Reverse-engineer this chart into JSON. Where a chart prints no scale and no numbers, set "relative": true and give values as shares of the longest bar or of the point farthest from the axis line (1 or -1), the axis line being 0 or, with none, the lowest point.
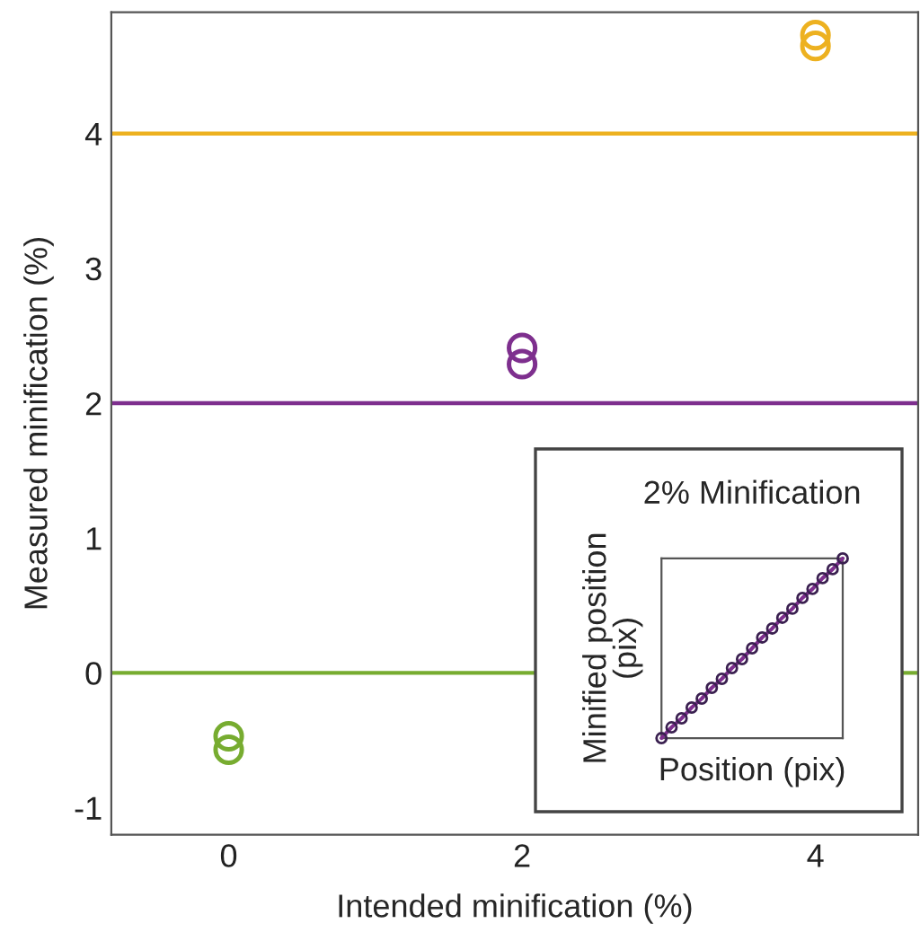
{
  "chart_data": [
    {
      "type": "scatter",
      "xlabel": "Intended minification (%)",
      "ylabel": "Measured minification (%)",
      "xlim": [
        -0.8,
        4.7
      ],
      "ylim": [
        -1.2,
        4.9
      ],
      "xticks": [
        0,
        2,
        4
      ],
      "yticks": [
        -1,
        0,
        1,
        2,
        3,
        4
      ],
      "marker": "circle",
      "grid": false,
      "series": [
        {
          "color": "#77ac30",
          "x": [
            0,
            0
          ],
          "values": [
            -0.47,
            -0.57
          ]
        },
        {
          "color": "#7e2f8e",
          "x": [
            2,
            2
          ],
          "values": [
            2.41,
            2.29
          ]
        },
        {
          "color": "#edb120",
          "x": [
            4,
            4
          ],
          "values": [
            4.73,
            4.65
          ]
        }
      ],
      "ref_lines": [
        {
          "axis": "y",
          "value": 4,
          "color": "#edb120"
        },
        {
          "axis": "y",
          "value": 2,
          "color": "#7e2f8e"
        },
        {
          "axis": "y",
          "value": 0,
          "color": "#77ac30"
        }
      ]
    },
    {
      "type": "line",
      "title": "2% Minification",
      "xlabel": "Position (pix)",
      "ylabel": "Minified position\n(pix)",
      "relative": true,
      "marker": "circle",
      "line_style": "solid",
      "categories": [
        null,
        null,
        null,
        null,
        null,
        null,
        null,
        null,
        null,
        null,
        null,
        null,
        null,
        null,
        null,
        null,
        null,
        null,
        null
      ],
      "series": [
        {
          "color": "#7e2f8e",
          "values": [
            0,
            0.06,
            0.11,
            0.17,
            0.22,
            0.28,
            0.33,
            0.39,
            0.44,
            0.5,
            0.56,
            0.61,
            0.67,
            0.72,
            0.78,
            0.83,
            0.89,
            0.94,
            1
          ]
        }
      ]
    }
  ]
}
